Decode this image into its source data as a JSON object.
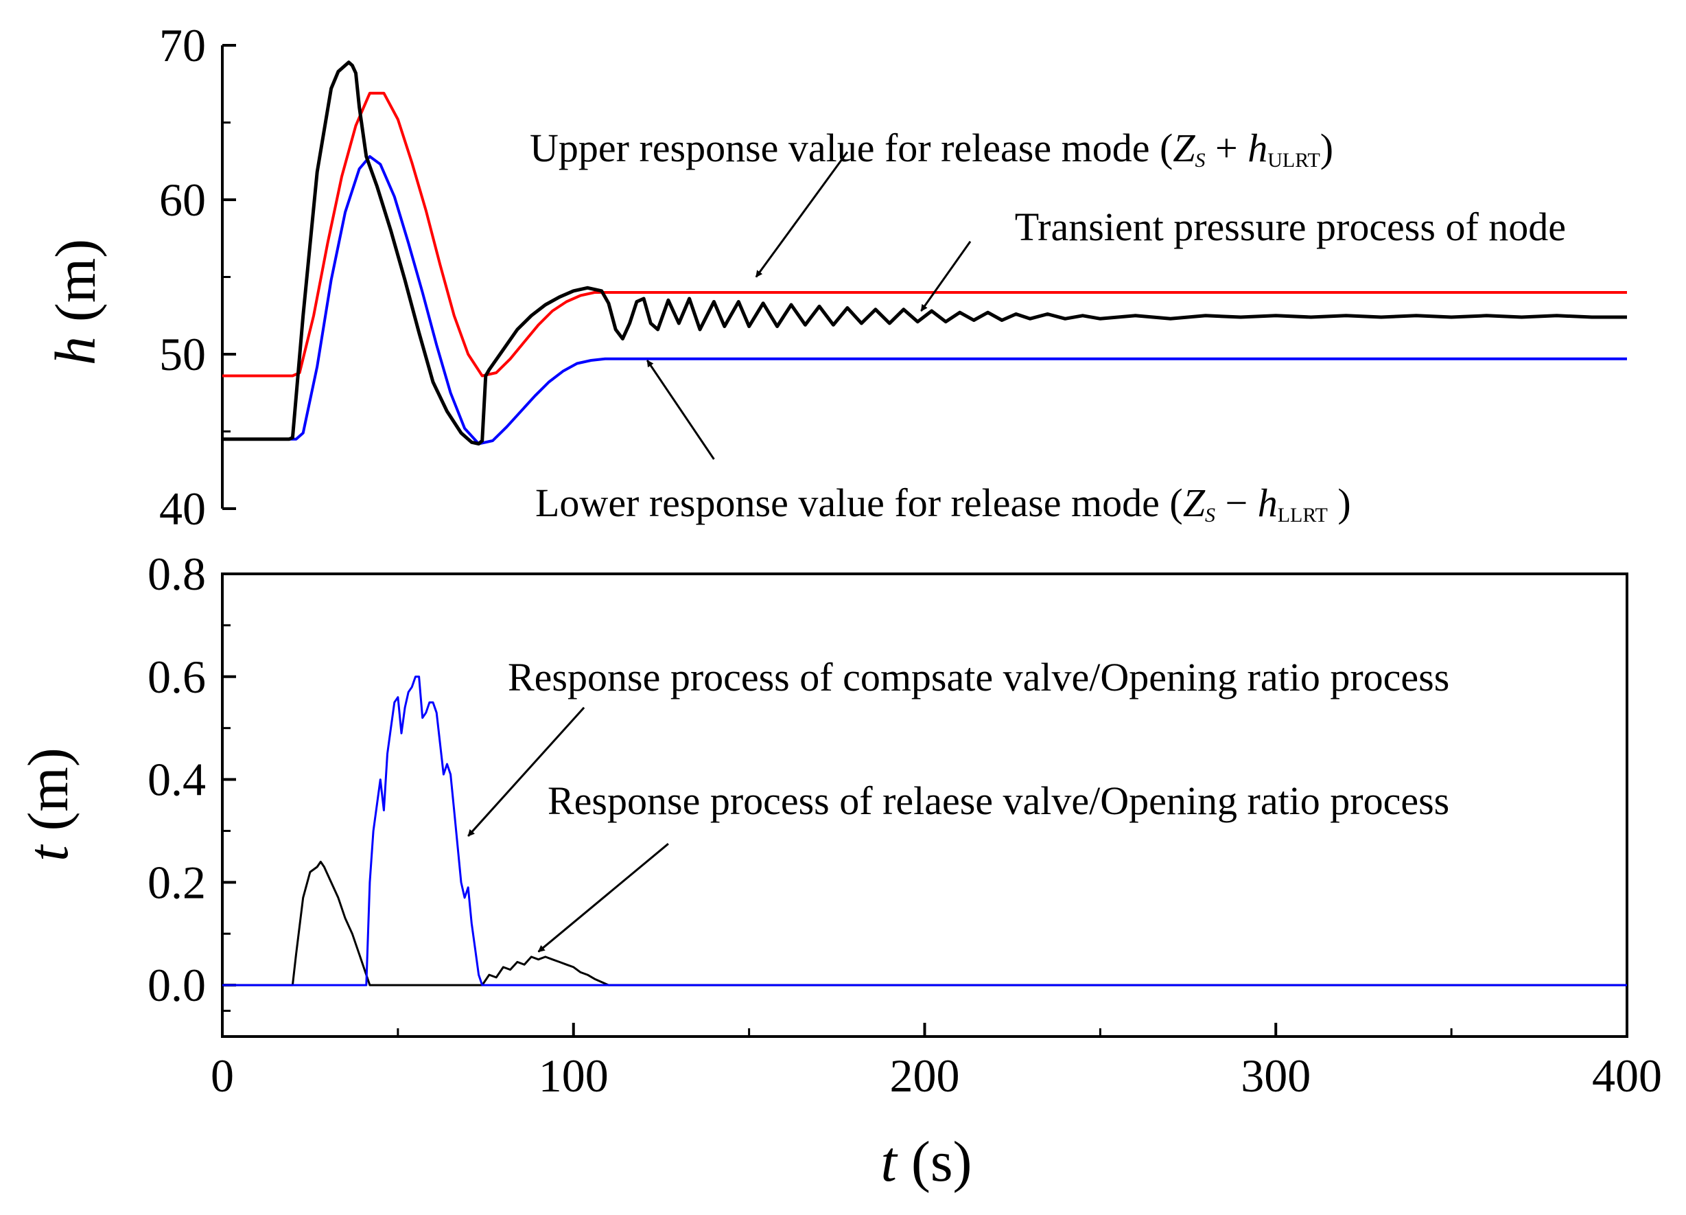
{
  "chart_data": [
    {
      "type": "line",
      "panel": "top",
      "title": "",
      "xlabel": "",
      "ylabel": "h (m)",
      "ylabel_var": "h",
      "ylabel_unit": "(m)",
      "xlim": [
        0,
        400
      ],
      "ylim": [
        40,
        70
      ],
      "yticks": [
        40,
        50,
        60,
        70
      ],
      "ytick_labels": [
        "40",
        "50",
        "60",
        "70"
      ],
      "grid": false,
      "series": [
        {
          "name": "Upper response value for release mode (Zs + hULRT)",
          "color": "#ff0000",
          "x": [
            0,
            20,
            22,
            26,
            30,
            34,
            38,
            42,
            46,
            50,
            54,
            58,
            62,
            66,
            70,
            74,
            78,
            82,
            86,
            90,
            94,
            98,
            102,
            106,
            110,
            400
          ],
          "y": [
            48.6,
            48.6,
            48.8,
            52.5,
            57.2,
            61.5,
            64.8,
            66.9,
            66.9,
            65.2,
            62.4,
            59.3,
            55.8,
            52.5,
            50.0,
            48.6,
            48.8,
            49.7,
            50.8,
            51.9,
            52.8,
            53.4,
            53.8,
            54.0,
            54.0,
            54.0
          ]
        },
        {
          "name": "Lower response value for release mode (Zs - hLLRT)",
          "color": "#0000ff",
          "x": [
            0,
            21,
            23,
            27,
            31,
            35,
            39,
            42,
            45,
            49,
            53,
            57,
            61,
            65,
            69,
            73,
            77,
            81,
            85,
            89,
            93,
            97,
            101,
            105,
            109,
            400
          ],
          "y": [
            44.5,
            44.5,
            44.9,
            49.2,
            54.8,
            59.2,
            62.0,
            62.8,
            62.3,
            60.2,
            57.2,
            54.0,
            50.6,
            47.5,
            45.2,
            44.2,
            44.4,
            45.3,
            46.3,
            47.3,
            48.2,
            48.9,
            49.4,
            49.6,
            49.7,
            49.7
          ]
        },
        {
          "name": "Transient pressure process of node",
          "color": "#000000",
          "x": [
            0,
            19,
            20,
            23,
            27,
            31,
            33,
            36,
            37,
            38,
            39,
            41,
            44,
            48,
            52,
            56,
            60,
            64,
            68,
            71,
            73,
            74,
            75,
            76,
            80,
            84,
            88,
            92,
            96,
            100,
            104,
            108,
            110,
            112,
            114,
            116,
            118,
            120,
            122,
            124,
            127,
            130,
            133,
            136,
            140,
            143,
            147,
            150,
            154,
            158,
            162,
            166,
            170,
            174,
            178,
            182,
            186,
            190,
            194,
            198,
            202,
            206,
            210,
            214,
            218,
            222,
            226,
            230,
            235,
            240,
            245,
            250,
            260,
            270,
            280,
            290,
            300,
            310,
            320,
            330,
            340,
            350,
            360,
            370,
            380,
            390,
            400
          ],
          "y": [
            44.5,
            44.5,
            44.6,
            52.5,
            61.8,
            67.2,
            68.3,
            68.9,
            68.7,
            68.2,
            66.0,
            62.8,
            60.9,
            58.0,
            54.8,
            51.4,
            48.2,
            46.3,
            44.9,
            44.3,
            44.2,
            44.4,
            48.6,
            49.0,
            50.3,
            51.6,
            52.5,
            53.2,
            53.7,
            54.1,
            54.3,
            54.1,
            53.3,
            51.6,
            51.0,
            52.0,
            53.4,
            53.6,
            52.0,
            51.6,
            53.5,
            52.0,
            53.6,
            51.6,
            53.4,
            51.8,
            53.4,
            51.8,
            53.3,
            51.8,
            53.2,
            51.9,
            53.1,
            51.9,
            53.0,
            52.0,
            52.9,
            52.0,
            52.9,
            52.1,
            52.8,
            52.1,
            52.7,
            52.2,
            52.7,
            52.2,
            52.6,
            52.3,
            52.6,
            52.3,
            52.5,
            52.3,
            52.5,
            52.3,
            52.5,
            52.4,
            52.5,
            52.4,
            52.5,
            52.4,
            52.5,
            52.4,
            52.5,
            52.4,
            52.5,
            52.4,
            52.4
          ]
        }
      ],
      "annotations": [
        {
          "id": "upper",
          "text": "Upper response value for release mode (",
          "math": [
            {
              "t": "Z",
              "i": true
            },
            {
              "t": "S",
              "i": true,
              "sub": true
            },
            {
              "t": " + "
            },
            {
              "t": "h",
              "i": true
            },
            {
              "t": "ULRT",
              "sub": true
            },
            {
              "t": ")"
            }
          ],
          "arrow_from": [
            178,
            63.1
          ],
          "arrow_to": [
            152,
            55.0
          ]
        },
        {
          "id": "transient",
          "text": "Transient pressure process of node",
          "math": [],
          "arrow_from": [
            213,
            57.3
          ],
          "arrow_to": [
            199,
            52.8
          ]
        },
        {
          "id": "lower",
          "text": "Lower response value for release mode (",
          "math": [
            {
              "t": "Z",
              "i": true
            },
            {
              "t": "S",
              "i": true,
              "sub": true
            },
            {
              "t": " − "
            },
            {
              "t": "h",
              "i": true
            },
            {
              "t": "LLRT",
              "sub": true
            },
            {
              "t": " )"
            }
          ],
          "arrow_from": [
            140,
            43.2
          ],
          "arrow_to": [
            121,
            49.6
          ]
        }
      ]
    },
    {
      "type": "line",
      "panel": "bottom",
      "title": "",
      "xlabel": "t (s)",
      "xlabel_var": "t",
      "xlabel_unit": "(s)",
      "ylabel": "t (m)",
      "ylabel_var": "t",
      "ylabel_unit": "(m)",
      "xlim": [
        0,
        400
      ],
      "ylim": [
        -0.1,
        0.8
      ],
      "yticks": [
        0.0,
        0.2,
        0.4,
        0.6,
        0.8
      ],
      "ytick_labels": [
        "0.0",
        "0.2",
        "0.4",
        "0.6",
        "0.8"
      ],
      "xticks": [
        0,
        100,
        200,
        300,
        400
      ],
      "xtick_labels": [
        "0",
        "100",
        "200",
        "300",
        "400"
      ],
      "grid": false,
      "series": [
        {
          "name": "Response process of relaese valve/Opening ratio process",
          "color": "#000000",
          "x": [
            0,
            20,
            21,
            23,
            25,
            27,
            28,
            29,
            31,
            33,
            35,
            37,
            39,
            41,
            42,
            74,
            75,
            76,
            78,
            80,
            82,
            84,
            86,
            88,
            90,
            92,
            94,
            96,
            98,
            100,
            102,
            104,
            106,
            108,
            110,
            400
          ],
          "y": [
            0,
            0,
            0.06,
            0.17,
            0.22,
            0.23,
            0.24,
            0.23,
            0.2,
            0.17,
            0.13,
            0.1,
            0.06,
            0.02,
            0,
            0,
            0.01,
            0.02,
            0.015,
            0.035,
            0.03,
            0.045,
            0.04,
            0.055,
            0.05,
            0.055,
            0.05,
            0.045,
            0.04,
            0.035,
            0.025,
            0.02,
            0.012,
            0.006,
            0,
            0
          ]
        },
        {
          "name": "Response process of compsate valve/Opening ratio process",
          "color": "#0000ff",
          "x": [
            0,
            41,
            42,
            43,
            45,
            46,
            47,
            48,
            49,
            50,
            51,
            52,
            53,
            54,
            55,
            56,
            57,
            58,
            59,
            60,
            61,
            62,
            63,
            64,
            65,
            66,
            67,
            68,
            69,
            70,
            71,
            72,
            73,
            74,
            75,
            400
          ],
          "y": [
            0,
            0,
            0.2,
            0.3,
            0.4,
            0.34,
            0.45,
            0.5,
            0.55,
            0.56,
            0.49,
            0.54,
            0.57,
            0.58,
            0.6,
            0.6,
            0.52,
            0.53,
            0.55,
            0.55,
            0.53,
            0.47,
            0.41,
            0.43,
            0.41,
            0.34,
            0.27,
            0.2,
            0.17,
            0.19,
            0.12,
            0.07,
            0.02,
            0,
            0,
            0
          ]
        }
      ],
      "annotations": [
        {
          "id": "compsate",
          "text": "Response process of compsate valve/Opening ratio process",
          "arrow_from": [
            103,
            0.54
          ],
          "arrow_to": [
            70,
            0.29
          ]
        },
        {
          "id": "relaese",
          "text": "Response process of relaese valve/Opening ratio process",
          "arrow_from": [
            127,
            0.275
          ],
          "arrow_to": [
            90,
            0.065
          ]
        }
      ]
    }
  ]
}
